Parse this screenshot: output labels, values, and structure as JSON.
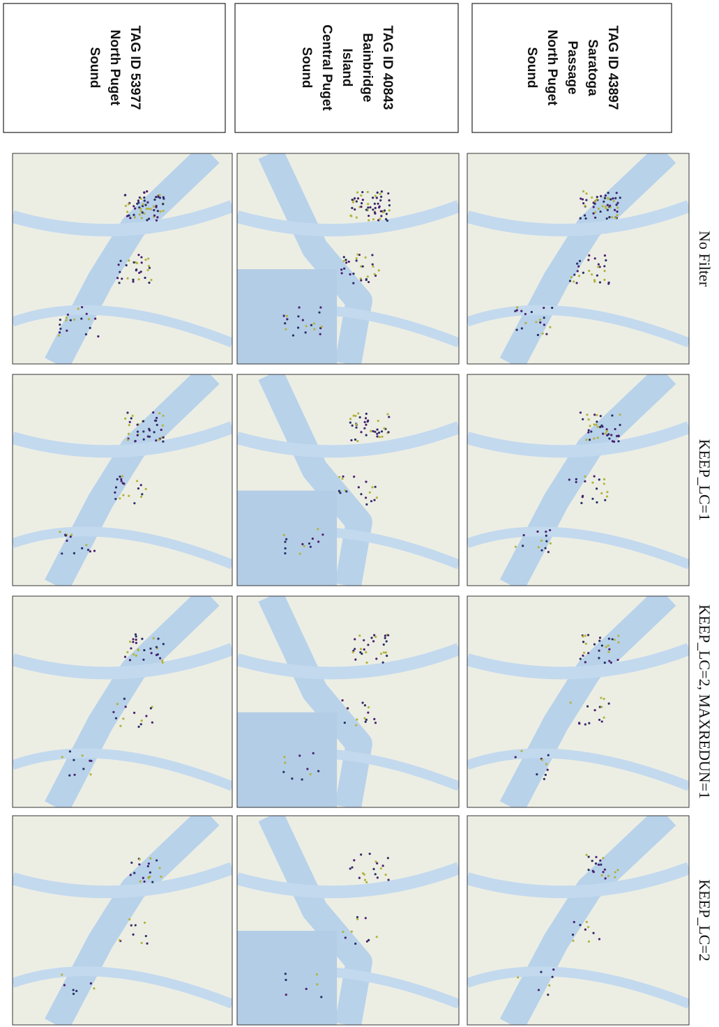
{
  "columns": [
    "No Filter",
    "KEEP_LC=1",
    "KEEP_LC=2, MAXREDUN=1",
    "KEEP_LC=2"
  ],
  "rows": [
    {
      "lines": [
        "TAG ID 43897",
        "Saratoga",
        "Passage",
        "North Puget",
        "Sound"
      ]
    },
    {
      "lines": [
        "TAG ID 40843",
        "Bainbridge",
        "Island",
        "Central Puget",
        "Sound"
      ]
    },
    {
      "lines": [
        "TAG ID 53977",
        "North Puget",
        "Sound"
      ]
    }
  ]
}
